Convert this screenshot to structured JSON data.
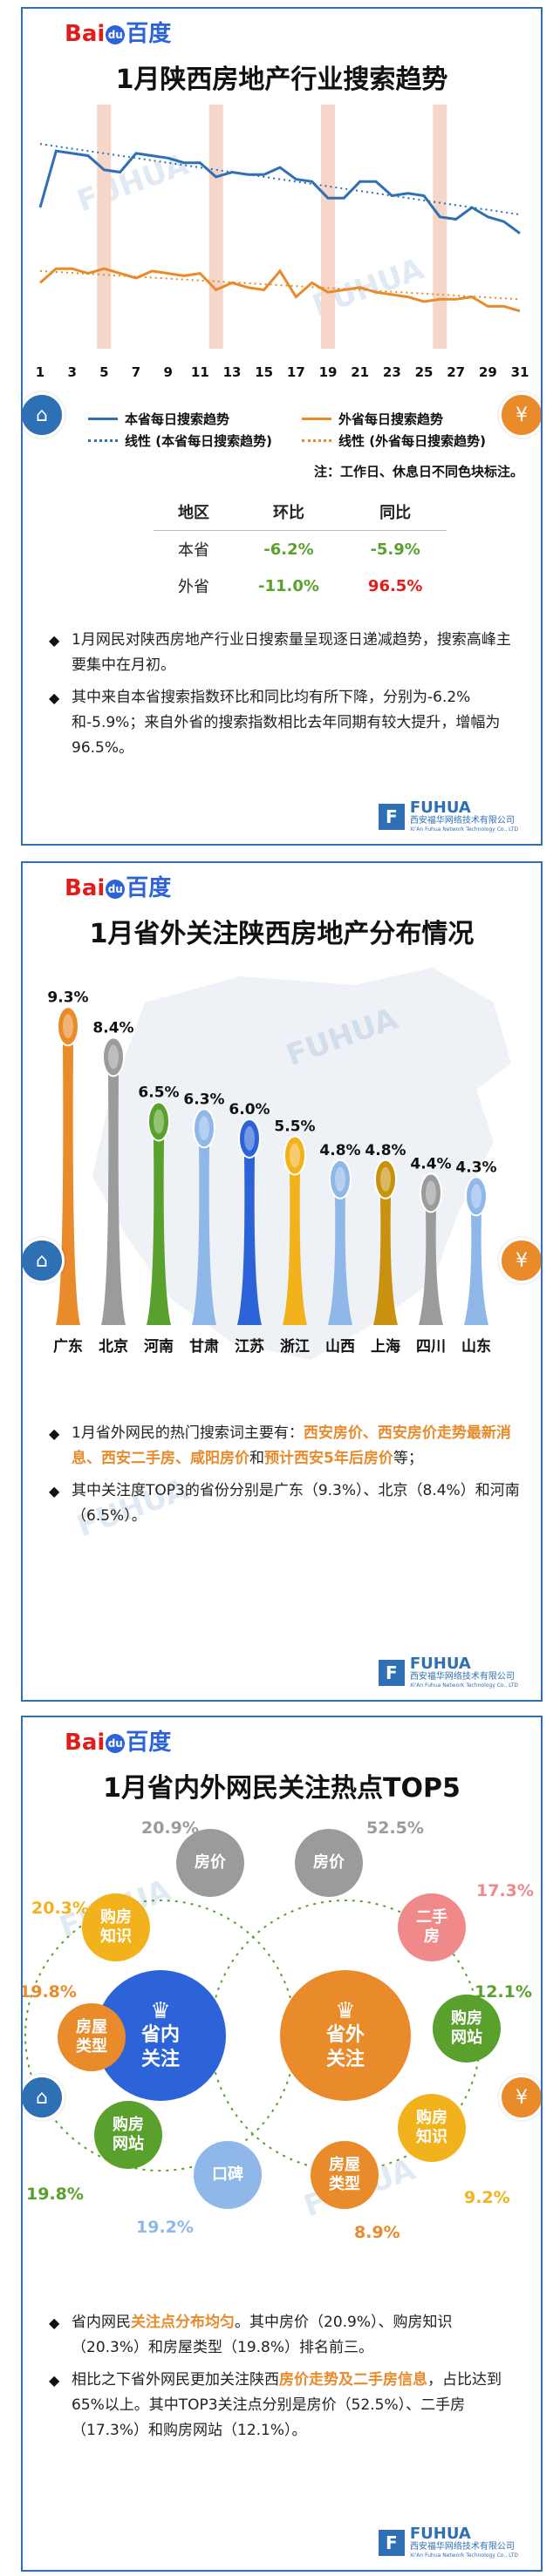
{
  "brand": {
    "bai": "Bai",
    "du": "du",
    "baidu_cn": "百度",
    "fuhua_mark": "F",
    "fuhua_name": "FUHUA",
    "fuhua_cn": "西安福华网络技术有限公司",
    "fuhua_en": "Xi'An Fuhua Network Technology Co., LTD"
  },
  "watermark": "FUHUA",
  "colors": {
    "blue": "#2f6fb3",
    "orange": "#e98a2b",
    "panel_border": "#2f6fb3",
    "highlight_band": "#f6d6c8"
  },
  "panel1": {
    "title": "1月陕西房地产行业搜索趋势",
    "note": "注：工作日、休息日不同色块标注。",
    "legend": [
      {
        "label": "本省每日搜索趋势",
        "style": "solid",
        "color": "#2f6fb3"
      },
      {
        "label": "外省每日搜索趋势",
        "style": "solid",
        "color": "#e98a2b"
      },
      {
        "label": "线性 (本省每日搜索趋势)",
        "style": "dotted",
        "color": "#2f6fb3"
      },
      {
        "label": "线性 (外省每日搜索趋势)",
        "style": "dotted",
        "color": "#e98a2b"
      }
    ],
    "table": {
      "headers": [
        "地区",
        "环比",
        "同比"
      ],
      "rows": [
        {
          "region": "本省",
          "mom": "-6.2%",
          "yoy": "-5.9%"
        },
        {
          "region": "外省",
          "mom": "-11.0%",
          "yoy": "96.5%"
        }
      ]
    },
    "bullets": [
      {
        "text": "1月网民对陕西房地产行业日搜索量呈现逐日递减趋势，搜索高峰主要集中在月初。"
      },
      {
        "text": "其中来自本省搜索指数环比和同比均有所下降，分别为-6.2%和-5.9%；来自外省的搜索指数相比去年同期有较大提升，增幅为96.5%。"
      }
    ]
  },
  "panel2": {
    "title": "1月省外关注陕西房地产分布情况",
    "bullets": {
      "b1_prefix": "1月省外网民的热门搜索词主要有：",
      "b1_hl": "西安房价、西安房价走势最新消息、西安二手房、咸阳房价",
      "b1_mid": "和",
      "b1_hl2": "预计西安5年后房价",
      "b1_suffix": "等；",
      "b2": "其中关注度TOP3的省份分别是广东（9.3%）、北京（8.4%）和河南（6.5%）。"
    }
  },
  "panel3": {
    "title": "1月省内外网民关注热点TOP5",
    "left_center": "省内\n关注",
    "right_center": "省外\n关注",
    "left_items": [
      {
        "label": "房价",
        "pct": "20.9%",
        "color": "#9b9b9b"
      },
      {
        "label": "购房\n知识",
        "pct": "20.3%",
        "color": "#f2b21b"
      },
      {
        "label": "房屋\n类型",
        "pct": "19.8%",
        "color": "#e98a2b"
      },
      {
        "label": "购房\n网站",
        "pct": "19.8%",
        "color": "#5aa02c"
      },
      {
        "label": "口碑",
        "pct": "19.2%",
        "color": "#8fb8e8"
      }
    ],
    "right_items": [
      {
        "label": "房价",
        "pct": "52.5%",
        "color": "#9b9b9b"
      },
      {
        "label": "二手\n房",
        "pct": "17.3%",
        "color": "#f08a8a"
      },
      {
        "label": "购房\n网站",
        "pct": "12.1%",
        "color": "#5aa02c"
      },
      {
        "label": "购房\n知识",
        "pct": "9.2%",
        "color": "#f2b21b"
      },
      {
        "label": "房屋\n类型",
        "pct": "8.9%",
        "color": "#e98a2b"
      }
    ],
    "bullets": {
      "b1_prefix": "省内网民",
      "b1_hl": "关注点分布均匀",
      "b1_suffix": "。其中房价（20.9%）、购房知识（20.3%）和房屋类型（19.8%）排名前三。",
      "b2_prefix": "相比之下省外网民更加关注陕西",
      "b2_hl": "房价走势及二手房信息",
      "b2_suffix": "，占比达到65%以上。其中TOP3关注点分别是房价（52.5%）、二手房（17.3%）和购房网站（12.1%）。"
    }
  },
  "chart_data": [
    {
      "type": "line",
      "title": "1月陕西房地产行业搜索趋势",
      "x": [
        1,
        2,
        3,
        4,
        5,
        6,
        7,
        8,
        9,
        10,
        11,
        12,
        13,
        14,
        15,
        16,
        17,
        18,
        19,
        20,
        21,
        22,
        23,
        24,
        25,
        26,
        27,
        28,
        29,
        30,
        31
      ],
      "x_ticks": [
        1,
        3,
        5,
        7,
        9,
        11,
        13,
        15,
        17,
        19,
        21,
        23,
        25,
        27,
        29,
        31
      ],
      "highlight_days": [
        5,
        12,
        19,
        26
      ],
      "ylim": [
        0,
        100
      ],
      "series": [
        {
          "name": "本省每日搜索趋势",
          "style": "solid",
          "color": "#2f6fb3",
          "values": [
            60,
            84,
            83,
            82,
            76,
            75,
            83,
            82,
            81,
            79,
            79,
            73,
            75,
            74,
            74,
            77,
            72,
            71,
            64,
            64,
            71,
            71,
            65,
            66,
            65,
            56,
            55,
            60,
            56,
            54,
            49
          ]
        },
        {
          "name": "外省每日搜索趋势",
          "style": "solid",
          "color": "#e98a2b",
          "values": [
            28,
            34,
            34,
            32,
            34,
            32,
            30,
            33,
            32,
            31,
            32,
            25,
            28,
            26,
            25,
            33,
            22,
            28,
            24,
            25,
            26,
            24,
            23,
            22,
            20,
            21,
            21,
            22,
            18,
            18,
            16
          ]
        },
        {
          "name": "线性 (本省每日搜索趋势)",
          "style": "dotted",
          "color": "#2f6fb3",
          "values": [
            87,
            86,
            85,
            84,
            83,
            82,
            81,
            80,
            79,
            78,
            77,
            76,
            75,
            74,
            73,
            72,
            71,
            70,
            69,
            68,
            67,
            66,
            65,
            64,
            63,
            62,
            61,
            60,
            59,
            58,
            57
          ]
        },
        {
          "name": "线性 (外省每日搜索趋势)",
          "style": "dotted",
          "color": "#e98a2b",
          "values": [
            33,
            32.6,
            32.2,
            31.8,
            31.4,
            31,
            30.6,
            30.2,
            29.8,
            29.4,
            29,
            28.6,
            28.2,
            27.8,
            27.4,
            27,
            26.6,
            26.2,
            25.8,
            25.4,
            25,
            24.6,
            24.2,
            23.8,
            23.4,
            23,
            22.6,
            22.2,
            21.8,
            21.4,
            21
          ]
        }
      ]
    },
    {
      "type": "bar",
      "title": "1月省外关注陕西房地产分布情况",
      "categories": [
        "广东",
        "北京",
        "河南",
        "甘肃",
        "江苏",
        "浙江",
        "山西",
        "上海",
        "四川",
        "山东"
      ],
      "values": [
        9.3,
        8.4,
        6.5,
        6.3,
        6.0,
        5.5,
        4.8,
        4.8,
        4.4,
        4.3
      ],
      "labels": [
        "9.3%",
        "8.4%",
        "6.5%",
        "6.3%",
        "6.0%",
        "5.5%",
        "4.8%",
        "4.8%",
        "4.4%",
        "4.3%"
      ],
      "colors": [
        "#e98a2b",
        "#9b9b9b",
        "#5aa02c",
        "#8fb8e8",
        "#2d63d8",
        "#f2b21b",
        "#8fb8e8",
        "#c8920e",
        "#9b9b9b",
        "#8fb8e8"
      ],
      "ylim": [
        0,
        10
      ]
    }
  ]
}
